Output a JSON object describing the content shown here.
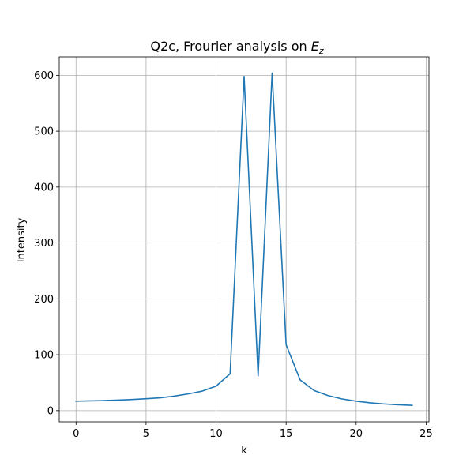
{
  "chart_data": {
    "type": "line",
    "title": "Q2c, Frourier analysis on ",
    "title_math_base": "E",
    "title_math_sub": "z",
    "xlabel": "k",
    "ylabel": "Intensity",
    "xlim": [
      -1.2,
      25.2
    ],
    "ylim": [
      -20,
      633
    ],
    "xticks": [
      0,
      5,
      10,
      15,
      20,
      25
    ],
    "yticks": [
      0,
      100,
      200,
      300,
      400,
      500,
      600
    ],
    "grid": true,
    "series": [
      {
        "color": "#1f77b4",
        "x": [
          0,
          1,
          2,
          3,
          4,
          5,
          6,
          7,
          8,
          9,
          10,
          11,
          12,
          13,
          14,
          15,
          16,
          17,
          18,
          19,
          20,
          21,
          22,
          23,
          24
        ],
        "y": [
          17,
          17.5,
          18,
          19,
          20,
          21.5,
          23,
          26,
          30,
          35,
          44,
          66,
          598,
          62,
          604,
          118,
          55,
          36,
          27,
          21,
          17,
          14,
          12,
          10.5,
          9.5
        ]
      }
    ]
  }
}
